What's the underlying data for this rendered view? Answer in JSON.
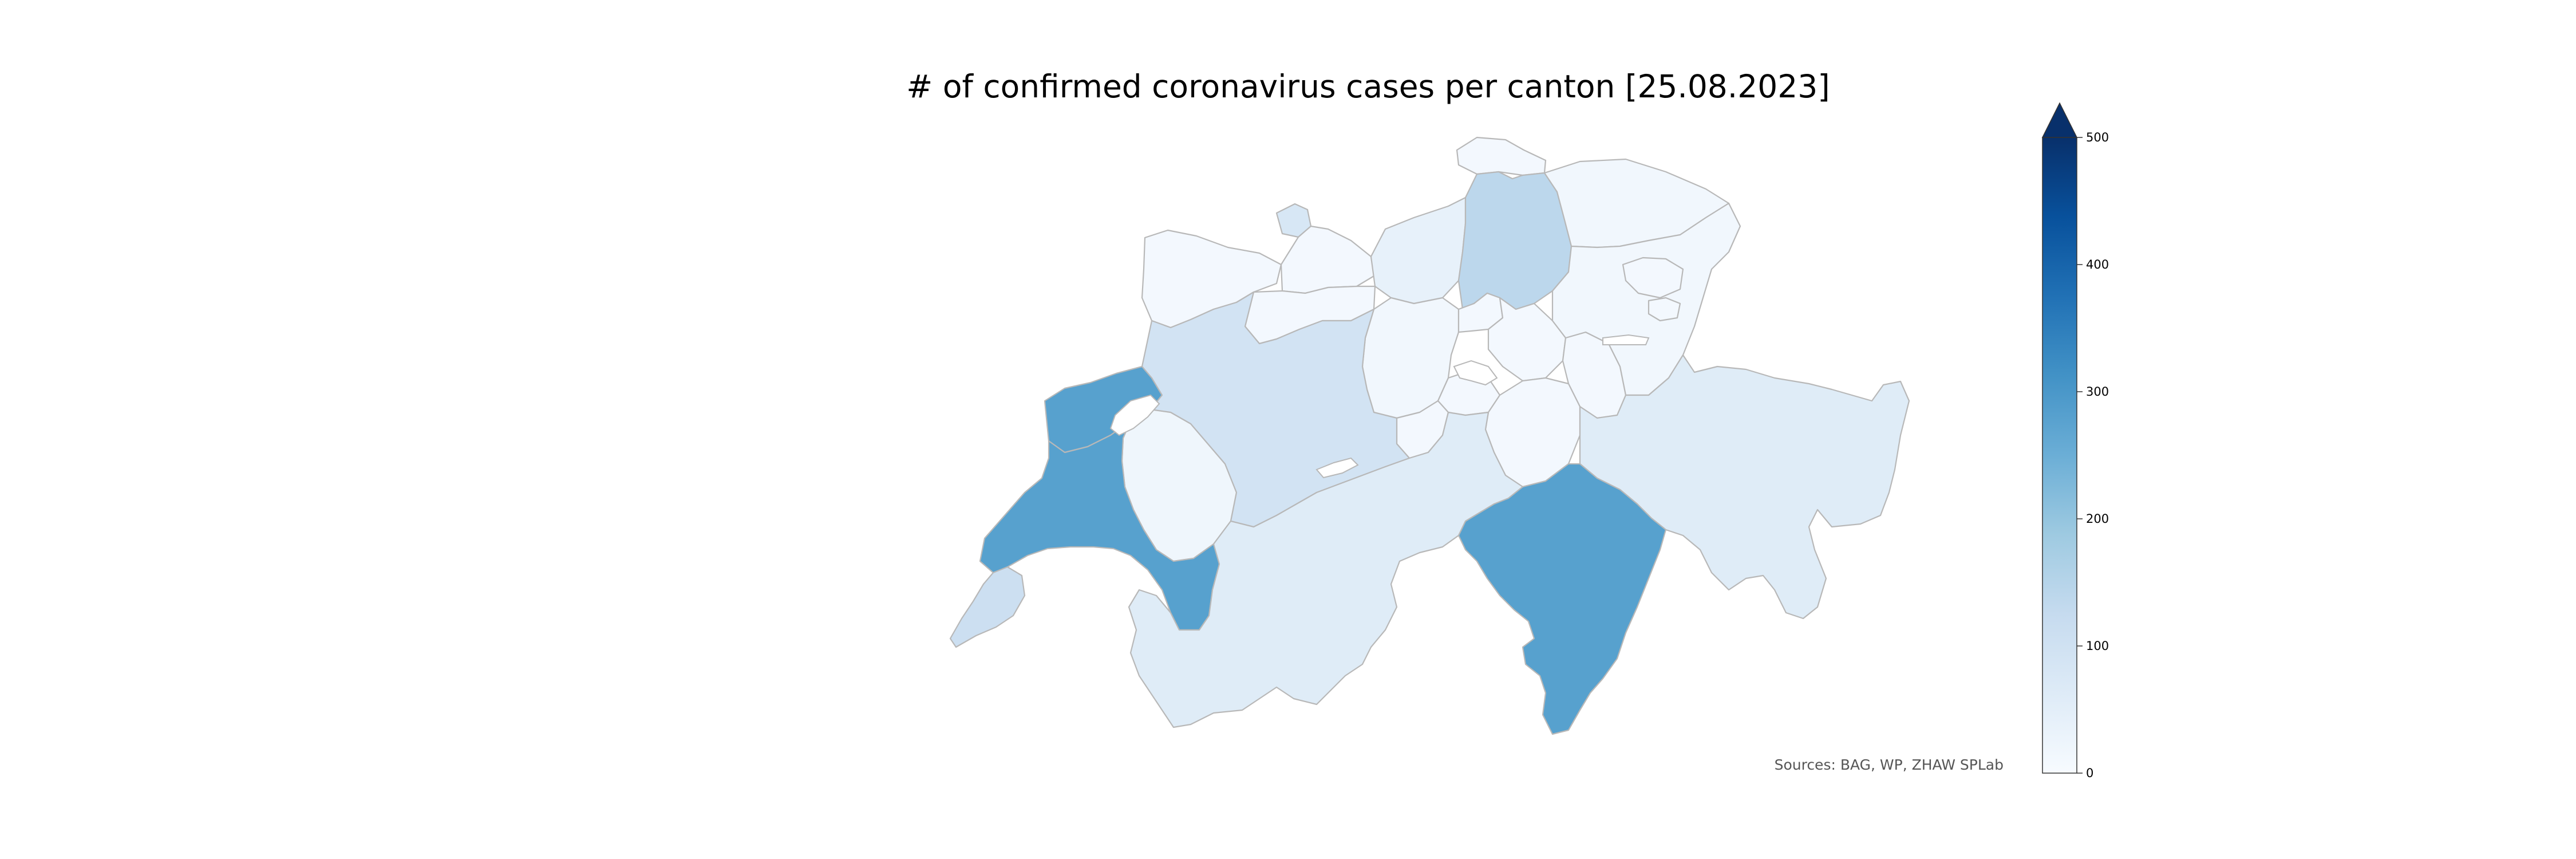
{
  "title": "# of confirmed coronavirus cases per canton [25.08.2023]",
  "source": "Sources: BAG, WP, ZHAW SPLab",
  "colorbar": {
    "min": 0,
    "max": 500,
    "extend": "max",
    "colormap": "Blues",
    "ticks": [
      "0",
      "100",
      "200",
      "300",
      "400",
      "500"
    ],
    "stops": [
      "#f7fbff",
      "#deebf7",
      "#c6dbef",
      "#9ecae1",
      "#6baed6",
      "#4292c6",
      "#2171b5",
      "#08519c",
      "#08306b"
    ]
  },
  "cantons": [
    {
      "id": "ZH",
      "value": 140
    },
    {
      "id": "BE",
      "value": 95
    },
    {
      "id": "LU",
      "value": 15
    },
    {
      "id": "UR",
      "value": 10
    },
    {
      "id": "SZ",
      "value": 10
    },
    {
      "id": "OW",
      "value": 10
    },
    {
      "id": "NW",
      "value": 10
    },
    {
      "id": "GL",
      "value": 10
    },
    {
      "id": "ZG",
      "value": 10
    },
    {
      "id": "FR",
      "value": 20
    },
    {
      "id": "SO",
      "value": 10
    },
    {
      "id": "BS",
      "value": 80
    },
    {
      "id": "BL",
      "value": 10
    },
    {
      "id": "SH",
      "value": 10
    },
    {
      "id": "AR",
      "value": 10
    },
    {
      "id": "AI",
      "value": 10
    },
    {
      "id": "SG",
      "value": 15
    },
    {
      "id": "GR",
      "value": 60
    },
    {
      "id": "AG",
      "value": 40
    },
    {
      "id": "TG",
      "value": 15
    },
    {
      "id": "TI",
      "value": 280
    },
    {
      "id": "VD",
      "value": 280
    },
    {
      "id": "VS",
      "value": 60
    },
    {
      "id": "NE",
      "value": 280
    },
    {
      "id": "GE",
      "value": 110
    },
    {
      "id": "JU",
      "value": 10
    }
  ]
}
